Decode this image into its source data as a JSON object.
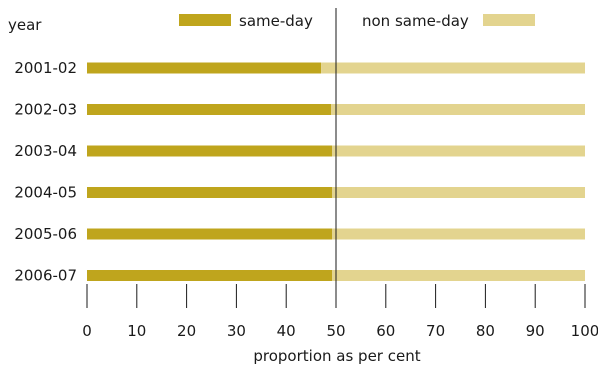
{
  "chart_data": {
    "type": "bar",
    "stacked": true,
    "orientation": "horizontal",
    "y_axis_title": "year",
    "xlabel": "proportion as  per cent",
    "categories": [
      "2001-02",
      "2002-03",
      "2003-04",
      "2004-05",
      "2005-06",
      "2006-07"
    ],
    "series": [
      {
        "name": "same-day",
        "color": "#bfa51d",
        "values": [
          47,
          49,
          49.2,
          49.2,
          49.2,
          49.2
        ]
      },
      {
        "name": "non same-day",
        "color": "#e3d48f",
        "values": [
          53,
          51,
          50.8,
          50.8,
          50.8,
          50.8
        ]
      }
    ],
    "xlim": [
      0,
      100
    ],
    "xticks": [
      "0",
      "10",
      "20",
      "30",
      "40",
      "50",
      "60",
      "70",
      "80",
      "90",
      "100"
    ],
    "reference_line_x": 50,
    "grid": false,
    "legend_position": "top"
  }
}
